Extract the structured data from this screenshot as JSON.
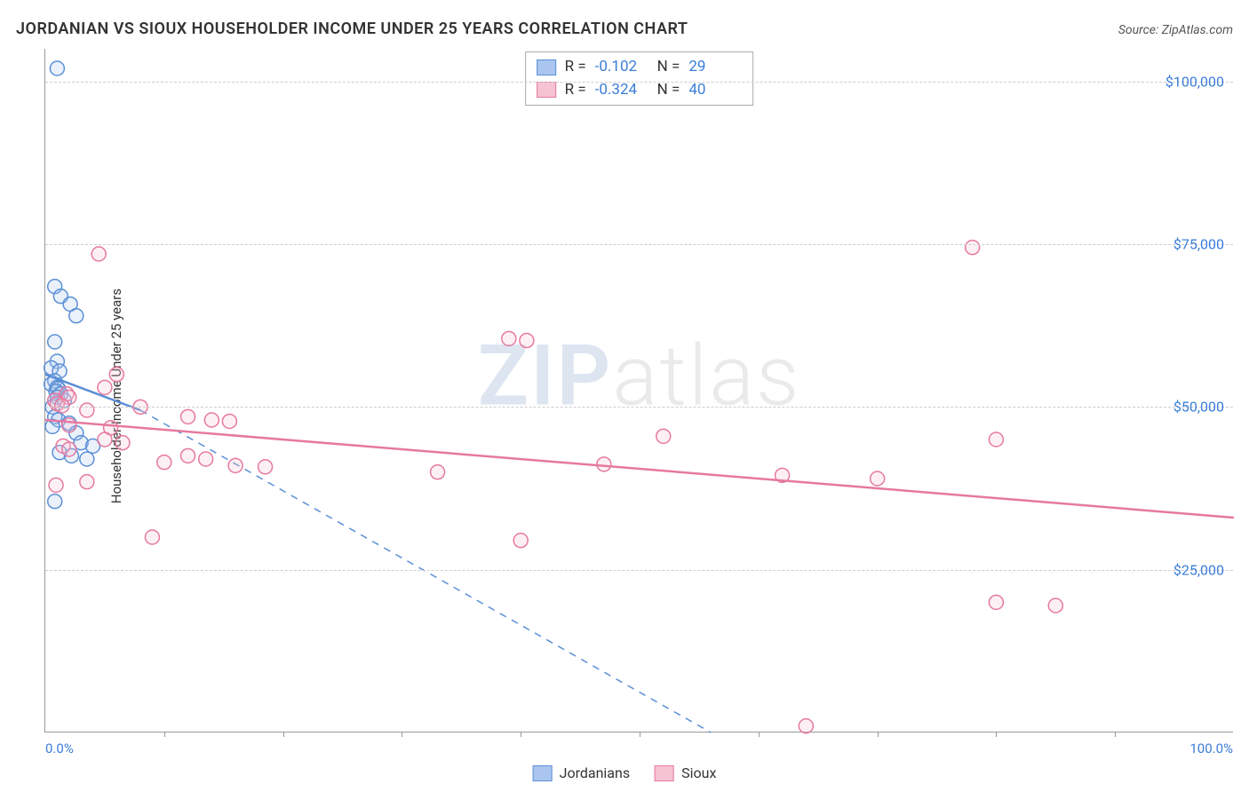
{
  "title": "JORDANIAN VS SIOUX HOUSEHOLDER INCOME UNDER 25 YEARS CORRELATION CHART",
  "source": "Source: ZipAtlas.com",
  "y_axis_label": "Householder Income Under 25 years",
  "watermark_a": "ZIP",
  "watermark_b": "atlas",
  "chart": {
    "type": "scatter",
    "background_color": "#ffffff",
    "grid_color": "#cccccc",
    "axis_color": "#999999",
    "x_min": 0.0,
    "x_max": 100.0,
    "x_min_label": "0.0%",
    "x_max_label": "100.0%",
    "x_tick_step": 10,
    "y_min": 0,
    "y_max": 105000,
    "y_gridlines": [
      25000,
      50000,
      75000,
      100000
    ],
    "y_tick_labels": [
      "$25,000",
      "$50,000",
      "$75,000",
      "$100,000"
    ],
    "y_tick_color": "#3b7dd8",
    "label_fontsize": 15,
    "title_fontsize": 18,
    "marker_radius": 8,
    "marker_fill_opacity": 0.25,
    "marker_stroke_width": 1.5,
    "trend_line_width": 2.5,
    "dashed_extrapolation": true
  },
  "series": [
    {
      "name": "Jordanians",
      "color_fill": "#aac6ef",
      "color_stroke": "#5b8fd6",
      "R": "-0.102",
      "N": "29",
      "trend": {
        "x1": 0,
        "y1": 55000,
        "x2": 8,
        "y2": 49500,
        "ext_x": 56,
        "ext_y": 0
      },
      "points": [
        [
          1.0,
          102000
        ],
        [
          0.8,
          68500
        ],
        [
          1.3,
          67000
        ],
        [
          2.1,
          65800
        ],
        [
          2.6,
          64000
        ],
        [
          0.8,
          60000
        ],
        [
          1.0,
          57000
        ],
        [
          0.5,
          56000
        ],
        [
          1.2,
          55500
        ],
        [
          0.8,
          54000
        ],
        [
          0.5,
          53500
        ],
        [
          1.0,
          53000
        ],
        [
          1.1,
          52800
        ],
        [
          0.9,
          52400
        ],
        [
          1.3,
          52000
        ],
        [
          1.0,
          51500
        ],
        [
          1.6,
          51000
        ],
        [
          0.6,
          50000
        ],
        [
          0.8,
          48500
        ],
        [
          1.1,
          48000
        ],
        [
          2.0,
          47500
        ],
        [
          0.6,
          47000
        ],
        [
          2.6,
          46000
        ],
        [
          3.0,
          44500
        ],
        [
          4.0,
          44000
        ],
        [
          1.2,
          43000
        ],
        [
          2.2,
          42500
        ],
        [
          3.5,
          42000
        ],
        [
          0.8,
          35500
        ]
      ]
    },
    {
      "name": "Sioux",
      "color_fill": "#f6c3d2",
      "color_stroke": "#e6799f",
      "R": "-0.324",
      "N": "40",
      "trend": {
        "x1": 0,
        "y1": 48000,
        "x2": 100,
        "y2": 33000,
        "ext_x": 100,
        "ext_y": 33000
      },
      "points": [
        [
          4.5,
          73500
        ],
        [
          78,
          74500
        ],
        [
          39,
          60500
        ],
        [
          40.5,
          60200
        ],
        [
          6,
          55000
        ],
        [
          5,
          53000
        ],
        [
          1.8,
          52000
        ],
        [
          2.0,
          51500
        ],
        [
          0.8,
          51000
        ],
        [
          1.0,
          50500
        ],
        [
          1.4,
          50200
        ],
        [
          8,
          50000
        ],
        [
          3.5,
          49500
        ],
        [
          12,
          48500
        ],
        [
          14,
          48000
        ],
        [
          15.5,
          47800
        ],
        [
          2,
          47200
        ],
        [
          5.5,
          46800
        ],
        [
          80,
          45000
        ],
        [
          52,
          45500
        ],
        [
          5,
          45000
        ],
        [
          6.5,
          44500
        ],
        [
          1.5,
          44000
        ],
        [
          2,
          43500
        ],
        [
          12,
          42500
        ],
        [
          13.5,
          42000
        ],
        [
          10,
          41500
        ],
        [
          16,
          41000
        ],
        [
          18.5,
          40800
        ],
        [
          47,
          41200
        ],
        [
          33,
          40000
        ],
        [
          62,
          39500
        ],
        [
          70,
          39000
        ],
        [
          0.9,
          38000
        ],
        [
          9,
          30000
        ],
        [
          40,
          29500
        ],
        [
          80,
          20000
        ],
        [
          85,
          19500
        ],
        [
          64,
          1000
        ],
        [
          3.5,
          38500
        ]
      ]
    }
  ],
  "stats_box": {
    "r_label": "R  =",
    "n_label": "N  ="
  },
  "legend_label_a": "Jordanians",
  "legend_label_b": "Sioux"
}
